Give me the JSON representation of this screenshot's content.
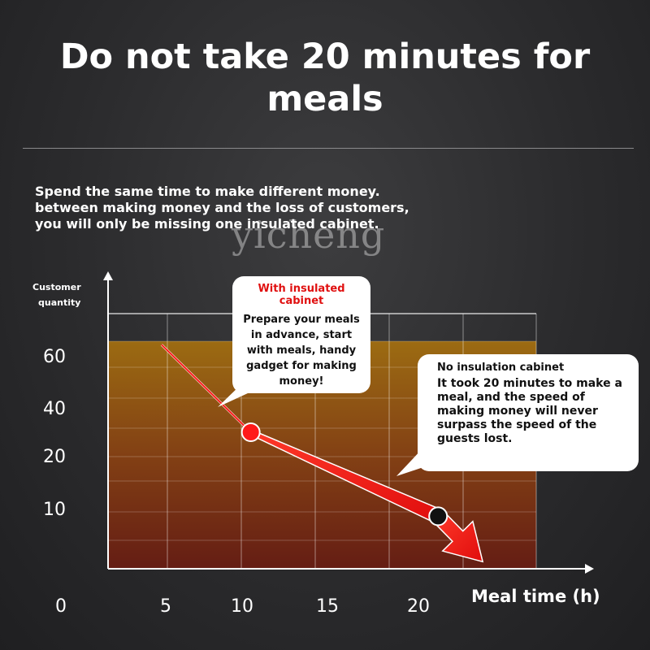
{
  "title_line1": "Do not take 20 minutes for",
  "title_line2": "meals",
  "subtitle_lines": [
    "Spend the same time to make different money.",
    "between making money and the loss of customers,",
    "you will only be missing one insulated cabinet."
  ],
  "watermark": "yicheng",
  "callouts": {
    "with_cabinet": {
      "heading": "With insulated cabinet",
      "body": "Prepare your meals in advance, start with meals, handy gadget for making money!"
    },
    "no_cabinet": {
      "heading": "No insulation cabinet",
      "body": "It took 20 minutes to make a meal, and the speed of making money will never surpass the speed of the guests lost."
    }
  },
  "colors": {
    "background": "#2b2b2d",
    "fill_top": "#a06a10",
    "fill_bottom": "#6a1e12",
    "arrow": "#ff1a1a",
    "callout_heading_red": "#e01010"
  },
  "chart_data": {
    "type": "line",
    "ylabel": "Customer quantity",
    "xlabel": "Meal time (h)",
    "xticks": [
      "0",
      "5",
      "10",
      "15",
      "20"
    ],
    "yticks": [
      "10",
      "20",
      "40",
      "60"
    ],
    "grid": true,
    "series": [
      {
        "x": [
          3,
          8,
          18.5,
          21
        ],
        "y": [
          64,
          39,
          15,
          2
        ]
      }
    ],
    "points": [
      {
        "label": "With insulated cabinet",
        "x": 8,
        "y": 39,
        "color": "#ff1a1a"
      },
      {
        "label": "No insulation cabinet",
        "x": 18.5,
        "y": 15,
        "color": "#111111"
      }
    ]
  }
}
